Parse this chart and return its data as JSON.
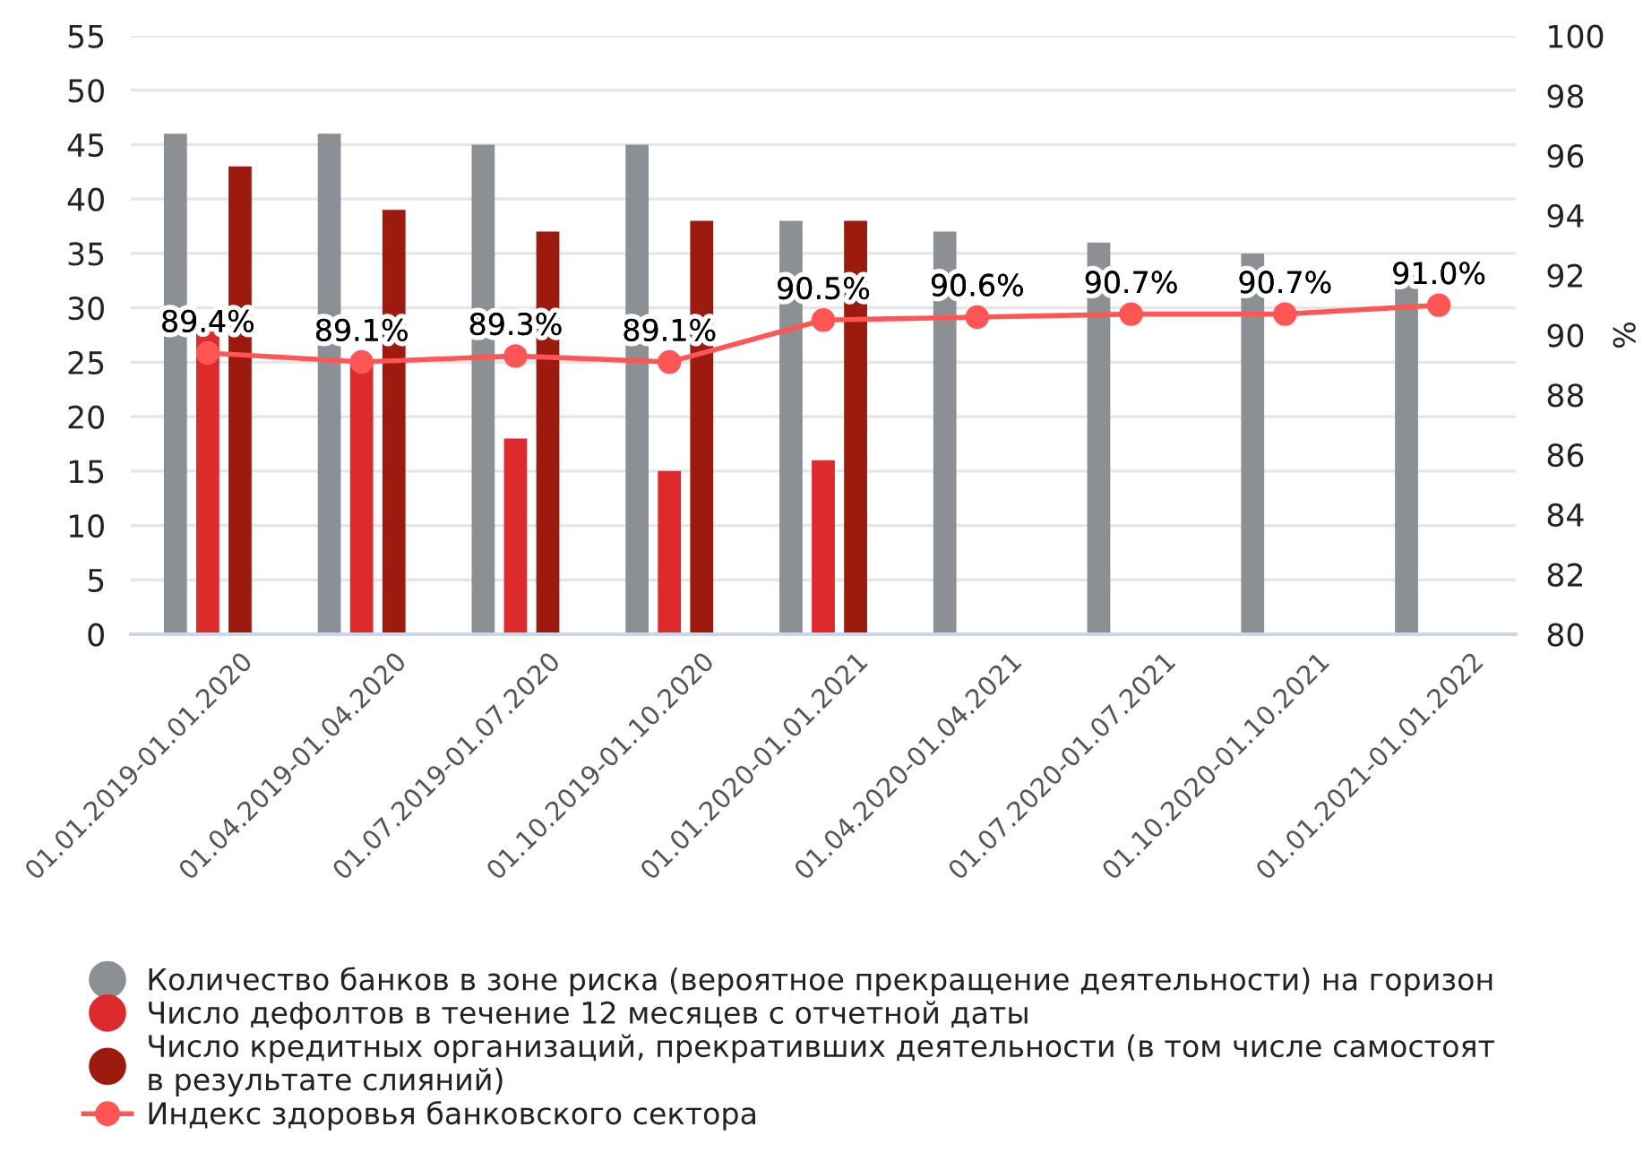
{
  "chart_data": {
    "type": "bar",
    "categories": [
      "01.01.2019-01.01.2020",
      "01.04.2019-01.04.2020",
      "01.07.2019-01.07.2020",
      "01.10.2019-01.10.2020",
      "01.01.2020-01.01.2021",
      "01.04.2020-01.04.2021",
      "01.07.2020-01.07.2021",
      "01.10.2020-01.10.2021",
      "01.01.2021-01.01.2022"
    ],
    "ylim": [
      0,
      55
    ],
    "yticks": [
      0,
      5,
      10,
      15,
      20,
      25,
      30,
      35,
      40,
      45,
      50,
      55
    ],
    "y2lim": [
      80,
      100
    ],
    "y2ticks": [
      80,
      82,
      84,
      86,
      88,
      90,
      92,
      94,
      96,
      98,
      100
    ],
    "y2label": "%",
    "grid": "y",
    "legend": "bottom",
    "series": [
      {
        "name": "Количество банков в зоне риска (вероятное прекращение деятельности) на горизон",
        "color": "#8c9094",
        "values": [
          46,
          46,
          45,
          45,
          38,
          37,
          36,
          35,
          33
        ]
      },
      {
        "name": "Число дефолтов в течение 12 месяцев с отчетной даты",
        "color": "#dc2a2d",
        "values": [
          28,
          25,
          18,
          15,
          16,
          null,
          null,
          null,
          null
        ]
      },
      {
        "name": "Число кредитных организаций, прекративших деятельности (в том числе самостоят\nв результате слияний)",
        "color": "#9c1a0e",
        "values": [
          43,
          39,
          37,
          38,
          38,
          null,
          null,
          null,
          null
        ]
      },
      {
        "name": "Индекс здоровья банковского сектора",
        "type": "line",
        "axis": "y2",
        "color": "#ff5555",
        "marker": "circle",
        "line_style": "solid",
        "values": [
          89.4,
          89.1,
          89.3,
          89.1,
          90.5,
          90.6,
          90.7,
          90.7,
          91.0
        ],
        "value_labels": [
          "89.4%",
          "89.1%",
          "89.3%",
          "89.1%",
          "90.5%",
          "90.6%",
          "90.7%",
          "90.7%",
          "91.0%"
        ]
      }
    ]
  }
}
